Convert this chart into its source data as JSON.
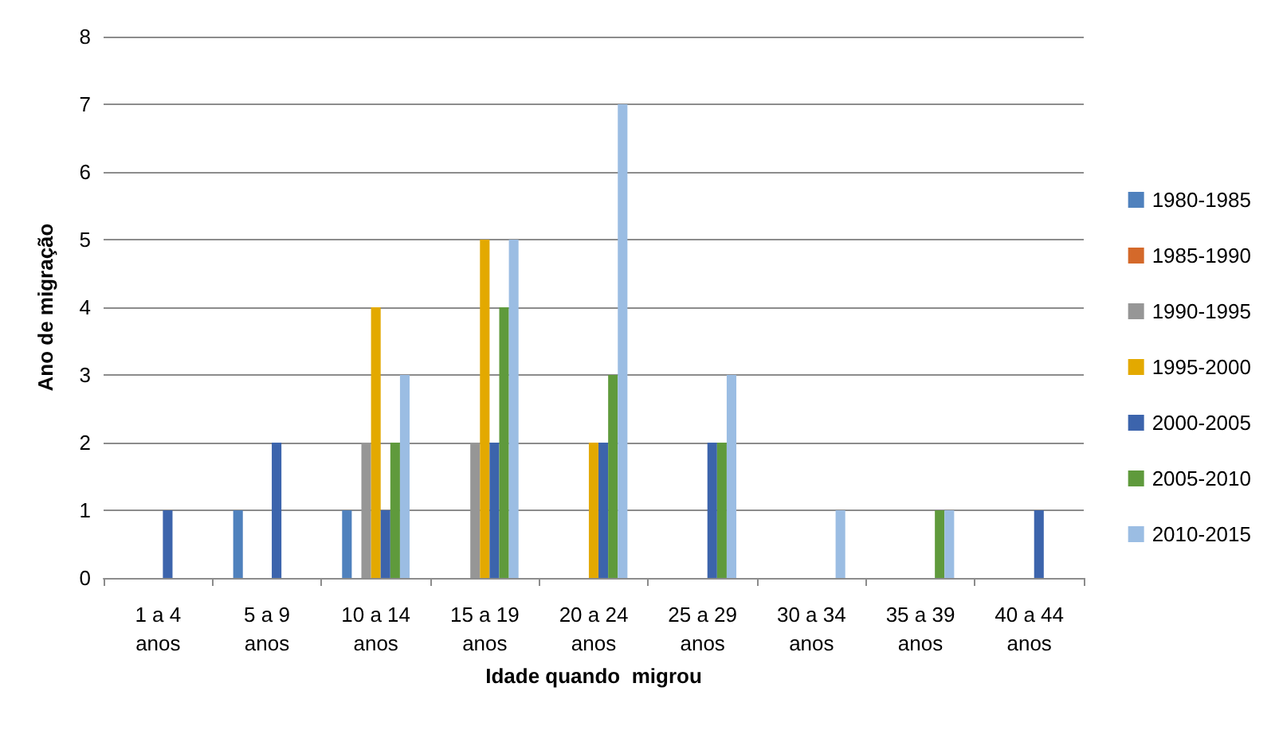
{
  "chart_data": {
    "type": "bar",
    "xlabel": "Idade quando  migrou",
    "ylabel": "Ano de migração",
    "categories": [
      "1 a 4\nanos",
      "5 a 9\nanos",
      "10 a 14\nanos",
      "15 a 19\nanos",
      "20 a 24\nanos",
      "25 a 29\nanos",
      "30 a 34\nanos",
      "35 a 39\nanos",
      "40 a 44\nanos"
    ],
    "series": [
      {
        "name": "1980-1985",
        "color": "#4f81bd",
        "values": [
          0,
          1,
          1,
          0,
          0,
          0,
          0,
          0,
          0
        ]
      },
      {
        "name": "1985-1990",
        "color": "#d4692a",
        "values": [
          0,
          0,
          0,
          0,
          0,
          0,
          0,
          0,
          0
        ]
      },
      {
        "name": "1990-1995",
        "color": "#969696",
        "values": [
          0,
          0,
          2,
          2,
          0,
          0,
          0,
          0,
          0
        ]
      },
      {
        "name": "1995-2000",
        "color": "#e3a900",
        "values": [
          0,
          0,
          4,
          5,
          2,
          0,
          0,
          0,
          0
        ]
      },
      {
        "name": "2000-2005",
        "color": "#3c64ac",
        "values": [
          1,
          2,
          1,
          2,
          2,
          2,
          0,
          0,
          1
        ]
      },
      {
        "name": "2005-2010",
        "color": "#5f9a3c",
        "values": [
          0,
          0,
          2,
          4,
          3,
          2,
          0,
          1,
          0
        ]
      },
      {
        "name": "2010-2015",
        "color": "#9bbde3",
        "values": [
          0,
          0,
          3,
          5,
          7,
          3,
          1,
          1,
          0
        ]
      }
    ],
    "ylim": [
      0,
      8
    ],
    "yticks": [
      0,
      1,
      2,
      3,
      4,
      5,
      6,
      7,
      8
    ],
    "grid": "y",
    "legend": "right"
  }
}
